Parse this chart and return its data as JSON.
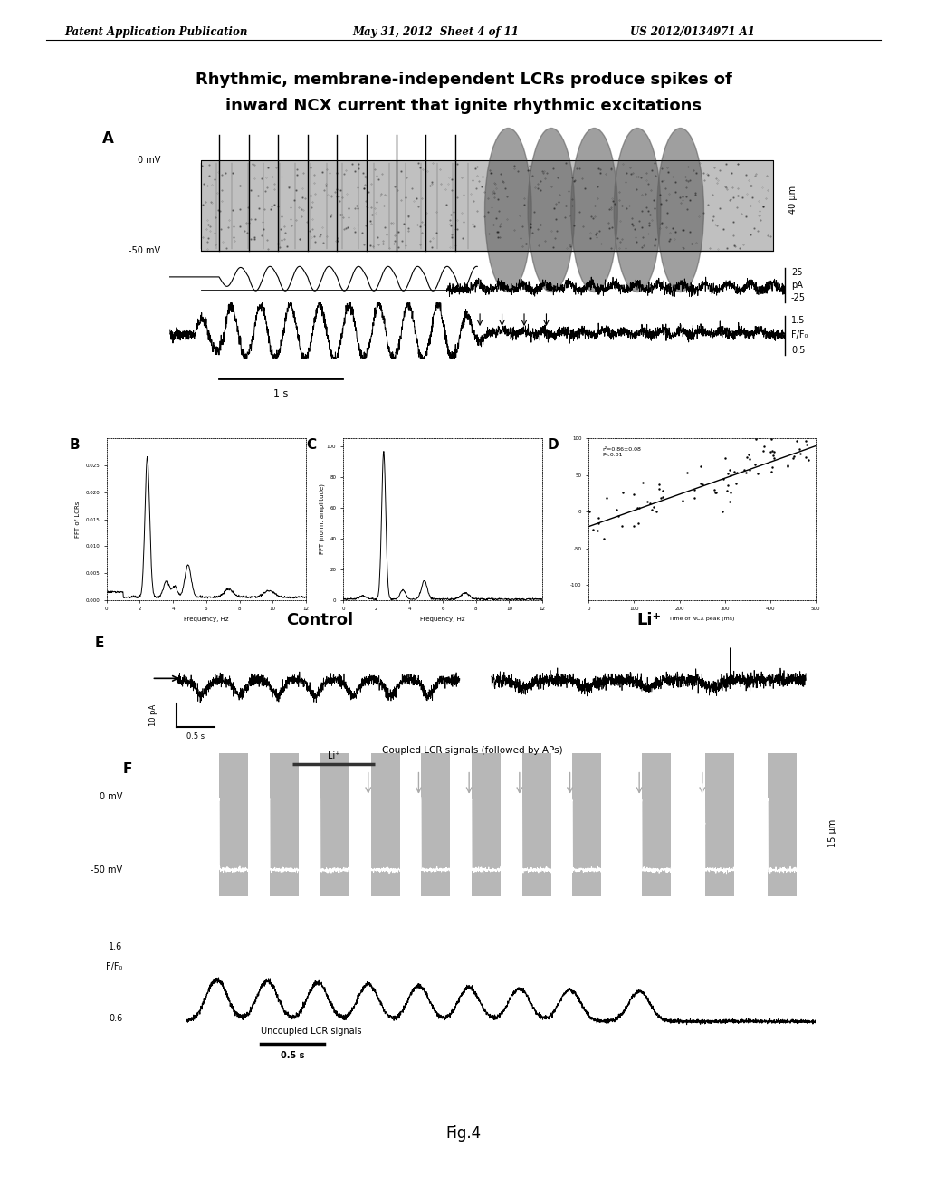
{
  "header_left": "Patent Application Publication",
  "header_mid": "May 31, 2012  Sheet 4 of 11",
  "header_right": "US 2012/0134971 A1",
  "title_line1": "Rhythmic, membrane-independent LCRs produce spikes of",
  "title_line2": "inward NCX current that ignite rhythmic excitations",
  "fig_label": "Fig.4",
  "panel_A_label": "A",
  "panel_B_label": "B",
  "panel_C_label": "C",
  "panel_D_label": "D",
  "panel_E_label": "E",
  "panel_F_label": "F",
  "label_0mV": "0 mV",
  "label_m50mV": "-50 mV",
  "label_40um": "40 μm",
  "label_25": "25",
  "label_pA": "pA",
  "label_m25": "-25",
  "label_1p5": "1.5",
  "label_FF0": "F/F₀",
  "label_0p5": "0.5",
  "label_1s": "1 s",
  "label_control": "Control",
  "label_li": "Li⁺",
  "label_10pA": "10 pA",
  "label_0p5s": "0.5 s",
  "label_coupled": "Coupled LCR signals (followed by APs)",
  "label_15um": "15 μm",
  "label_uncoupled": "Uncoupled LCR signals",
  "label_1p6": "1.6",
  "label_0p6": "0.6",
  "background": "#ffffff"
}
